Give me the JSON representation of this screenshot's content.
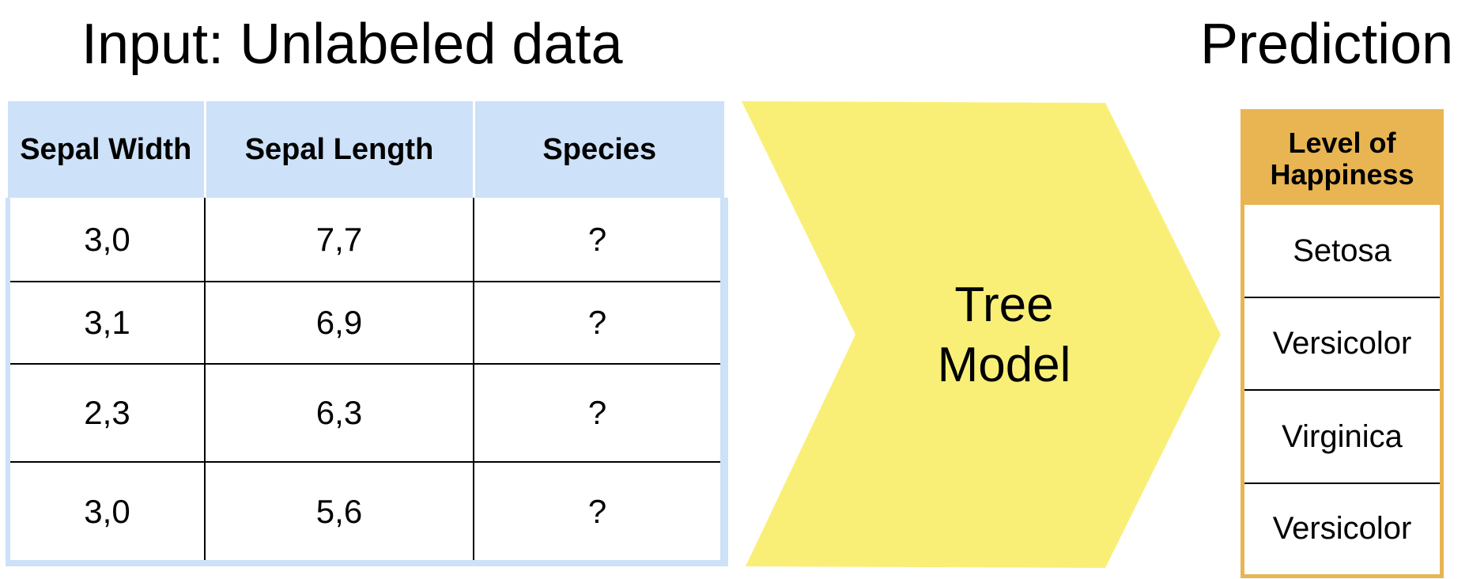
{
  "input_heading": "Input: Unlabeled data",
  "prediction_heading": "Prediction",
  "input_table": {
    "columns": [
      "Sepal Width",
      "Sepal Length",
      "Species"
    ],
    "rows": [
      [
        "3,0",
        "7,7",
        "?"
      ],
      [
        "3,1",
        "6,9",
        "?"
      ],
      [
        "2,3",
        "6,3",
        "?"
      ],
      [
        "3,0",
        "5,6",
        "?"
      ]
    ]
  },
  "model": {
    "label_line1": "Tree",
    "label_line2": "Model"
  },
  "prediction_table": {
    "header_line1": "Level of",
    "header_line2": "Happiness",
    "rows": [
      "Setosa",
      "Versicolor",
      "Virginica",
      "Versicolor"
    ]
  },
  "colors": {
    "input_header_bg": "#cde1f8",
    "arrow_fill": "#f9ef77",
    "prediction_accent": "#e8b552"
  }
}
